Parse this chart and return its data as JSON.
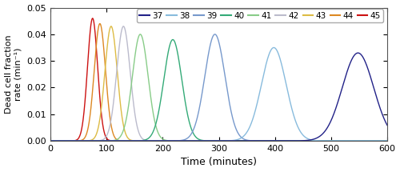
{
  "temperatures": [
    45,
    44,
    43,
    42,
    41,
    40,
    39,
    38,
    37
  ],
  "colors": [
    "#cc1111",
    "#dd8822",
    "#ddbb44",
    "#bbbbcc",
    "#88cc88",
    "#33aa77",
    "#7799cc",
    "#88bbdd",
    "#222288"
  ],
  "peak_centers": [
    75,
    88,
    108,
    130,
    160,
    218,
    293,
    398,
    548
  ],
  "peak_heights": [
    0.046,
    0.044,
    0.043,
    0.043,
    0.04,
    0.038,
    0.04,
    0.035,
    0.033
  ],
  "peak_widths": [
    9,
    10,
    11,
    12,
    14,
    16,
    18,
    22,
    28
  ],
  "xlim": [
    0,
    600
  ],
  "ylim": [
    0,
    0.05
  ],
  "xlabel": "Time (minutes)",
  "ylabel": "Dead cell fraction\nrate (min⁻¹)",
  "yticks": [
    0,
    0.01,
    0.02,
    0.03,
    0.04,
    0.05
  ],
  "xticks": [
    0,
    100,
    200,
    300,
    400,
    500,
    600
  ],
  "legend_order_temps": [
    37,
    38,
    39,
    40,
    41,
    42,
    43,
    44,
    45
  ],
  "legend_order_colors": [
    "#222288",
    "#88bbdd",
    "#7799cc",
    "#33aa77",
    "#88cc88",
    "#bbbbcc",
    "#ddbb44",
    "#dd8822",
    "#cc1111"
  ],
  "figsize": [
    5.0,
    2.15
  ],
  "dpi": 100
}
